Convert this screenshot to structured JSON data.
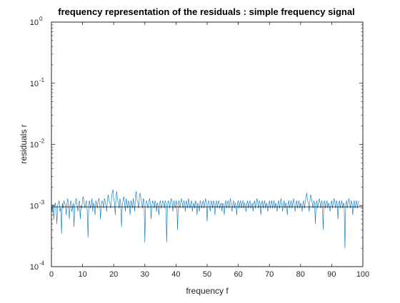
{
  "chart_data": {
    "type": "line",
    "title": "frequency representation of the residuals : simple frequency signal",
    "xlabel": "frequency f",
    "ylabel": "residuals r",
    "xlim": [
      0,
      100
    ],
    "ylim": [
      0.0001,
      1
    ],
    "yscale": "log",
    "grid": false,
    "x_ticks": [
      0,
      10,
      20,
      30,
      40,
      50,
      60,
      70,
      80,
      90,
      100
    ],
    "x_tick_labels": [
      "0",
      "10",
      "20",
      "30",
      "40",
      "50",
      "60",
      "70",
      "80",
      "90",
      "100"
    ],
    "y_ticks": [
      0.0001,
      0.001,
      0.01,
      0.1,
      1
    ],
    "y_tick_labels": [
      {
        "base": "10",
        "exp": "-4"
      },
      {
        "base": "10",
        "exp": "-3"
      },
      {
        "base": "10",
        "exp": "-2"
      },
      {
        "base": "10",
        "exp": "-1"
      },
      {
        "base": "10",
        "exp": "0"
      }
    ],
    "reference_line": {
      "y": 0.00095,
      "color": "#000000"
    },
    "series": [
      {
        "color": "#0072BD",
        "x_start": 0,
        "x_step": 0.25,
        "y": [
          0.0011,
          0.0008,
          0.00105,
          0.0006,
          0.00098,
          0.0011,
          0.0009,
          0.0005,
          0.00102,
          0.0011,
          0.0012,
          0.0008,
          0.00092,
          0.00035,
          0.0011,
          0.0009,
          0.0012,
          0.0011,
          0.00098,
          0.0007,
          0.0011,
          0.0013,
          0.0009,
          0.0006,
          0.0011,
          0.0012,
          0.0008,
          0.0009,
          0.0011,
          0.00045,
          0.001,
          0.0012,
          0.0013,
          0.001,
          0.0008,
          0.0011,
          0.0012,
          0.0006,
          0.001,
          0.0009,
          0.0013,
          0.0014,
          0.0011,
          0.0009,
          0.0011,
          0.0012,
          0.0008,
          0.0003,
          0.0011,
          0.0012,
          0.0009,
          0.001,
          0.0013,
          0.0008,
          0.0011,
          0.001,
          0.0007,
          0.0012,
          0.0011,
          0.0009,
          0.0012,
          0.0013,
          0.0011,
          0.0006,
          0.001,
          0.0012,
          0.0011,
          0.0009,
          0.0013,
          0.0012,
          0.001,
          0.0008,
          0.0013,
          0.0015,
          0.0012,
          0.0011,
          0.0009,
          0.0012,
          0.0016,
          0.0018,
          0.0013,
          0.0011,
          0.0007,
          0.0015,
          0.0017,
          0.0012,
          0.0011,
          0.0009,
          0.0013,
          0.0011,
          0.00045,
          0.001,
          0.0012,
          0.0014,
          0.0011,
          0.0008,
          0.0013,
          0.0011,
          0.0009,
          0.0012,
          0.0011,
          0.0007,
          0.0012,
          0.0011,
          0.0009,
          0.0013,
          0.0011,
          0.0008,
          0.0015,
          0.0017,
          0.0012,
          0.0011,
          0.0009,
          0.0014,
          0.0016,
          0.0013,
          0.0011,
          0.0009,
          0.0013,
          0.0012,
          0.00025,
          0.001,
          0.0012,
          0.0011,
          0.0009,
          0.0011,
          0.0013,
          0.0011,
          0.0006,
          0.001,
          0.0012,
          0.0011,
          0.0009,
          0.0012,
          0.0011,
          0.0008,
          0.0011,
          0.001,
          0.0007,
          0.0011,
          0.0012,
          0.0009,
          0.001,
          0.0012,
          0.0011,
          0.0009,
          0.0012,
          0.0011,
          0.00025,
          0.001,
          0.0012,
          0.0011,
          0.0009,
          0.0012,
          0.0013,
          0.0011,
          0.0008,
          0.0012,
          0.0011,
          0.0009,
          0.0012,
          0.0011,
          0.0004,
          0.0011,
          0.0012,
          0.0009,
          0.0011,
          0.0013,
          0.0011,
          0.0009,
          0.0012,
          0.0011,
          0.0008,
          0.0012,
          0.0011,
          0.0009,
          0.0013,
          0.0011,
          0.0009,
          0.0011,
          0.0012,
          0.0008,
          0.001,
          0.0011,
          0.0009,
          0.0012,
          0.0011,
          0.0007,
          0.0011,
          0.001,
          0.0008,
          0.0012,
          0.0011,
          0.0009,
          0.0011,
          0.0012,
          0.0009,
          0.0011,
          0.0013,
          0.0011,
          0.00055,
          0.0011,
          0.0012,
          0.001,
          0.0008,
          0.0012,
          0.0011,
          0.0009,
          0.0012,
          0.0011,
          0.0007,
          0.0011,
          0.0012,
          0.0009,
          0.0011,
          0.0012,
          0.0009,
          0.001,
          0.0011,
          0.0008,
          0.0011,
          0.001,
          0.0007,
          0.0011,
          0.0012,
          0.0009,
          0.0011,
          0.0012,
          0.0009,
          0.0011,
          0.0013,
          0.001,
          0.0008,
          0.0011,
          0.0012,
          0.0009,
          0.0011,
          0.001,
          0.0007,
          0.0011,
          0.0012,
          0.0009,
          0.0011,
          0.0012,
          0.0009,
          0.0011,
          0.0012,
          0.0009,
          0.0011,
          0.001,
          0.0008,
          0.0011,
          0.0012,
          0.0009,
          0.0011,
          0.0012,
          0.0009,
          0.001,
          0.0011,
          0.0008,
          0.0011,
          0.0012,
          0.0009,
          0.0011,
          0.0013,
          0.0011,
          0.0009,
          0.0012,
          0.0011,
          0.0007,
          0.0011,
          0.0012,
          0.0009,
          0.0011,
          0.0012,
          0.0009,
          0.0011,
          0.001,
          0.0008,
          0.0011,
          0.0012,
          0.0009,
          0.0011,
          0.0012,
          0.0009,
          0.0011,
          0.0012,
          0.0009,
          0.0011,
          0.001,
          0.0008,
          0.0011,
          0.0012,
          0.0009,
          0.0011,
          0.0013,
          0.001,
          0.0008,
          0.0011,
          0.0012,
          0.0009,
          0.0011,
          0.001,
          0.0007,
          0.0011,
          0.0012,
          0.0009,
          0.0011,
          0.0012,
          0.0009,
          0.0011,
          0.0013,
          0.001,
          0.0008,
          0.0011,
          0.0012,
          0.0009,
          0.0011,
          0.0012,
          0.0009,
          0.0011,
          0.001,
          0.0008,
          0.0011,
          0.0012,
          0.0009,
          0.0011,
          0.0014,
          0.0016,
          0.0012,
          0.0011,
          0.0008,
          0.0012,
          0.0015,
          0.0013,
          0.0011,
          0.0009,
          0.0012,
          0.0011,
          0.0005,
          0.0011,
          0.0012,
          0.0009,
          0.0011,
          0.0013,
          0.0011,
          0.0009,
          0.0012,
          0.0011,
          0.0004,
          0.0011,
          0.0012,
          0.0009,
          0.0011,
          0.0012,
          0.0009,
          0.0011,
          0.001,
          0.0008,
          0.0011,
          0.0012,
          0.0009,
          0.0011,
          0.0013,
          0.0011,
          0.0009,
          0.0012,
          0.0011,
          0.0006,
          0.0011,
          0.0012,
          0.0009,
          0.0011,
          0.0012,
          0.0009,
          0.0011,
          0.001,
          0.0002,
          0.0011,
          0.0012,
          0.0009,
          0.0011,
          0.0013,
          0.0011,
          0.0009,
          0.0012,
          0.0011,
          0.0007,
          0.0011,
          0.0012,
          0.0009,
          0.0011,
          0.0012,
          0.0009,
          0.0011,
          0.0012
        ]
      }
    ]
  }
}
